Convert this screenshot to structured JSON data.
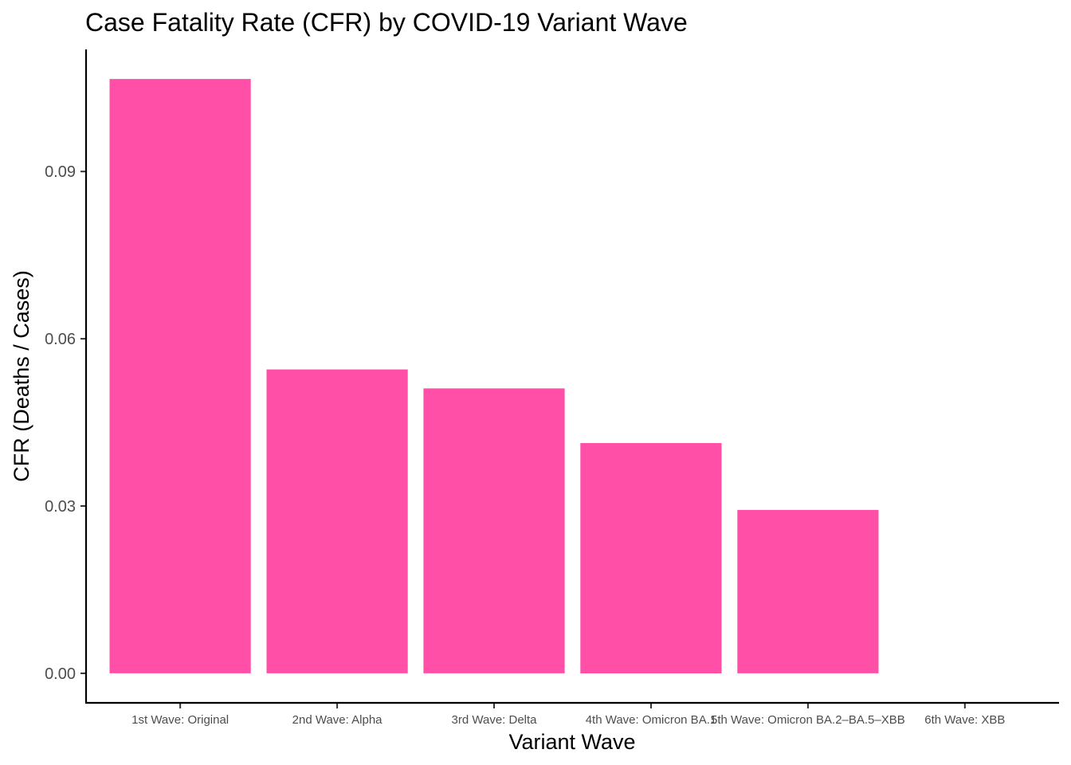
{
  "chart_data": {
    "type": "bar",
    "title": "Case Fatality Rate (CFR) by COVID-19 Variant Wave",
    "xlabel": "Variant Wave",
    "ylabel": "CFR (Deaths / Cases)",
    "categories": [
      "1st Wave: Original",
      "2nd Wave: Alpha",
      "3rd Wave: Delta",
      "4th Wave: Omicron BA.1",
      "5th Wave: Omicron BA.2–BA.5–XBB",
      "6th Wave: XBB"
    ],
    "values": [
      0.1066,
      0.0545,
      0.0511,
      0.0413,
      0.0293,
      0
    ],
    "yticks": [
      0.0,
      0.03,
      0.06,
      0.09
    ],
    "ytick_labels": [
      "0.00",
      "0.03",
      "0.06",
      "0.09"
    ],
    "ylim": [
      -0.0053,
      0.1119
    ],
    "bar_color": "#FF4FA7",
    "grid": false,
    "legend": "none"
  }
}
